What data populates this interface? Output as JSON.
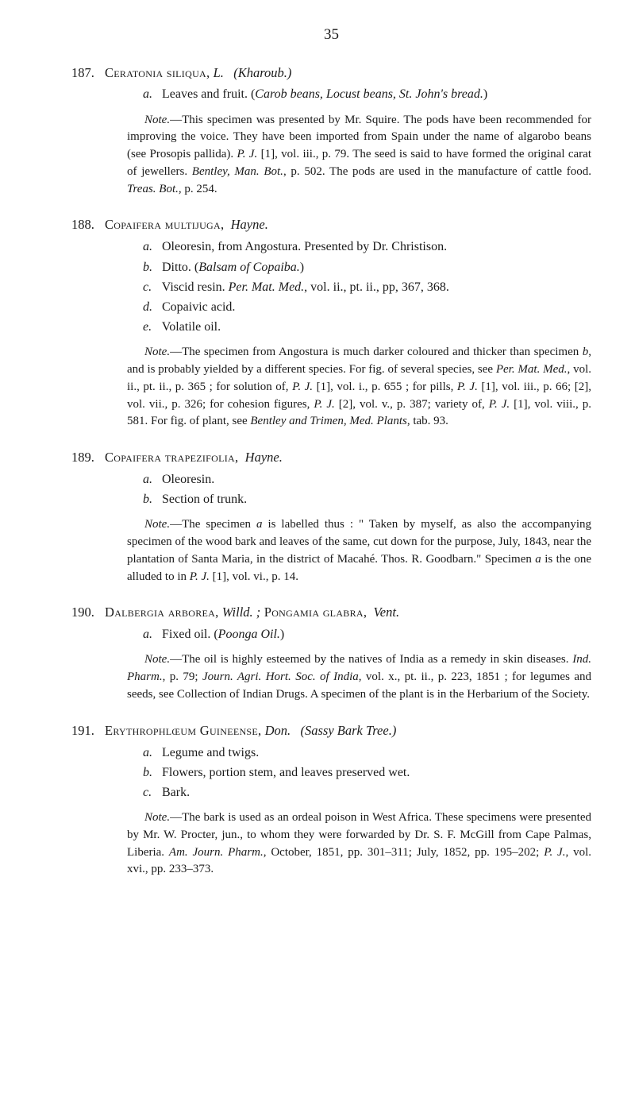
{
  "page_number": "35",
  "entries": [
    {
      "num": "187.",
      "title_sc": "Ceratonia siliqua,",
      "title_abbr": " L.",
      "title_paren": "(Kharoub.)",
      "subitems": [
        {
          "label": "a.",
          "text_pre": "Leaves and fruit.   (",
          "text_ital": "Carob beans, Locust beans, St. John's bread.",
          "text_post": ")"
        }
      ],
      "note": "Note.—This specimen was presented by Mr. Squire. The pods have been recommended for improving the voice. They have been imported from Spain under the name of algarobo beans (see Prosopis pallida). P. J. [1], vol. iii., p. 79. The seed is said to have formed the original carat of jewellers. Bentley, Man. Bot., p. 502. The pods are used in the manufacture of cattle food. Treas. Bot., p. 254."
    },
    {
      "num": "188.",
      "title_sc": "Copaifera multijuga,",
      "title_abbr": "",
      "title_paren_ital": "Hayne.",
      "subitems": [
        {
          "label": "a.",
          "text": "Oleoresin, from Angostura.   Presented by Dr. Christison."
        },
        {
          "label": "b.",
          "text_pre": "Ditto.    (",
          "text_ital": "Balsam of Copaiba.",
          "text_post": ")"
        },
        {
          "label": "c.",
          "text_pre": "Viscid resin.    ",
          "text_ital": "Per. Mat. Med.",
          "text_post": ", vol. ii., pt. ii., pp, 367, 368."
        },
        {
          "label": "d.",
          "text": "Copaivic acid."
        },
        {
          "label": "e.",
          "text": "Volatile oil."
        }
      ],
      "note": "Note.—The specimen from Angostura is much darker coloured and thicker than specimen b, and is probably yielded by a different species. For fig. of several species, see Per. Mat. Med., vol. ii., pt. ii., p. 365 ; for solution of, P. J. [1], vol. i., p. 655 ; for pills, P. J. [1], vol. iii., p. 66; [2], vol. vii., p. 326; for cohesion figures, P. J. [2], vol. v., p. 387; variety of, P. J. [1], vol. viii., p. 581. For fig. of plant, see Bentley and Trimen, Med. Plants, tab. 93."
    },
    {
      "num": "189.",
      "title_sc": "Copaifera trapezifolia,",
      "title_abbr": "",
      "title_paren_ital": "Hayne.",
      "subitems": [
        {
          "label": "a.",
          "text": "Oleoresin."
        },
        {
          "label": "b.",
          "text": "Section of trunk."
        }
      ],
      "note": "Note.—The specimen a is labelled thus : \" Taken by myself, as also the accompanying specimen of the wood bark and leaves of the same, cut down for the purpose, July, 1843, near the plantation of Santa Maria, in the district of Macahé. Thos. R. Goodbarn.\" Specimen a is the one alluded to in P. J. [1], vol. vi., p. 14."
    },
    {
      "num": "190.",
      "title_sc": "Dalbergia arborea,",
      "title_abbr": " Willd. ;",
      "title_sc2": "  Pongamia glabra,",
      "title_paren_ital": "Vent.",
      "subitems": [
        {
          "label": "a.",
          "text_pre": "Fixed oil.    (",
          "text_ital": "Poonga Oil.",
          "text_post": ")"
        }
      ],
      "note": "Note.—The oil is highly esteemed by the natives of India as a remedy in skin diseases. Ind. Pharm., p. 79; Journ. Agri. Hort. Soc. of India, vol. x., pt. ii., p. 223, 1851 ; for legumes and seeds, see Collection of Indian Drugs. A specimen of the plant is in the Herbarium of the Society."
    },
    {
      "num": "191.",
      "title_sc": "Erythrophlœum Guineense,",
      "title_abbr": " Don.",
      "title_paren": "(Sassy Bark Tree.)",
      "subitems": [
        {
          "label": "a.",
          "text": "Legume and twigs."
        },
        {
          "label": "b.",
          "text": "Flowers, portion stem, and leaves preserved wet."
        },
        {
          "label": "c.",
          "text": "Bark."
        }
      ],
      "note": "Note.—The bark is used as an ordeal poison in West Africa. These specimens were presented by Mr. W. Procter, jun., to whom they were forwarded by Dr. S. F. McGill from Cape Palmas, Liberia. Am. Journ. Pharm., October, 1851, pp. 301–311; July, 1852, pp. 195–202; P. J., vol. xvi., pp. 233–373."
    }
  ]
}
